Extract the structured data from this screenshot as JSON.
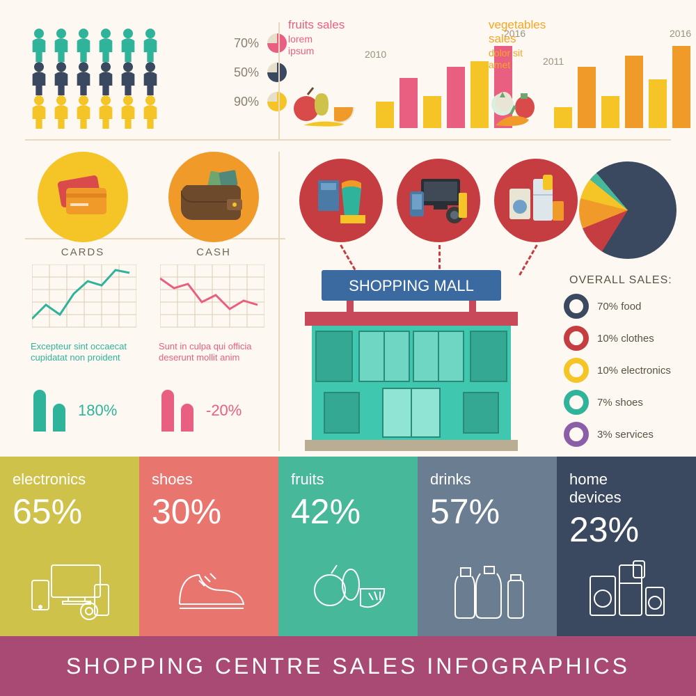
{
  "colors": {
    "bg": "#fdf8f1",
    "teal": "#2fb39b",
    "navy": "#3a4960",
    "yellow": "#f5c528",
    "orange": "#f09a2a",
    "pink": "#e85f82",
    "red": "#c53c41",
    "coral": "#e9766e",
    "green": "#47b99a",
    "blueGray": "#6a7d91",
    "olive": "#cfc24b",
    "violet": "#8a5fa8",
    "footer": "#a84a74",
    "text": "#6e6554",
    "divider": "#e7d9bd"
  },
  "people": {
    "cols": 6,
    "rows": 3,
    "row_colors": [
      "#2fb39b",
      "#3a4960",
      "#f5c528"
    ],
    "legend": [
      {
        "pct": "70%",
        "color": "#e85f82"
      },
      {
        "pct": "50%",
        "color": "#3a4960"
      },
      {
        "pct": "90%",
        "color": "#f5c528"
      }
    ]
  },
  "fruits": {
    "title": "fruits sales",
    "subtitle": "lorem\nipsum",
    "year_start": "2010",
    "year_end": "2016",
    "bars": {
      "values": [
        38,
        72,
        46,
        88,
        96,
        118
      ],
      "colors": [
        "#f5c528",
        "#e85f82",
        "#f5c528",
        "#e85f82",
        "#f5c528",
        "#e85f82"
      ],
      "max": 120
    }
  },
  "vegetables": {
    "title": "vegetables\nsales",
    "subtitle": "dolor sit\namet",
    "year_start": "2011",
    "year_end": "2016",
    "bars": {
      "values": [
        30,
        88,
        46,
        104,
        70,
        118
      ],
      "colors": [
        "#f5c528",
        "#f09a2a",
        "#f5c528",
        "#f09a2a",
        "#f5c528",
        "#f09a2a"
      ],
      "max": 120
    }
  },
  "payment": {
    "cards_label": "CARDS",
    "cash_label": "CASH",
    "cards_circle": "#f5c528",
    "cash_circle": "#f09a2a",
    "mini_grid": "#d9cdb4",
    "cards_line": "#2fb39b",
    "cash_line": "#e85f82",
    "cards_points": [
      [
        0,
        78
      ],
      [
        20,
        58
      ],
      [
        40,
        72
      ],
      [
        60,
        42
      ],
      [
        80,
        24
      ],
      [
        100,
        30
      ],
      [
        120,
        8
      ],
      [
        140,
        12
      ]
    ],
    "cash_points": [
      [
        0,
        20
      ],
      [
        20,
        34
      ],
      [
        40,
        28
      ],
      [
        60,
        54
      ],
      [
        80,
        44
      ],
      [
        100,
        64
      ],
      [
        120,
        52
      ],
      [
        140,
        58
      ]
    ],
    "cards_text": "Excepteur sint occaecat cupidatat non proident",
    "cash_text": "Sunt in culpa qui officia deserunt mollit anim",
    "cards_bars": {
      "heights": [
        60,
        40
      ],
      "color": "#2fb39b",
      "value": "180%"
    },
    "cash_bars": {
      "heights": [
        60,
        40
      ],
      "color": "#e85f82",
      "value": "-20%"
    }
  },
  "mall": {
    "sign": "SHOPPING MALL"
  },
  "pie": {
    "type": "pie",
    "slices": [
      {
        "label": "food",
        "deg": 252,
        "color": "#3a4960"
      },
      {
        "label": "clothes",
        "deg": 36,
        "color": "#c53c41"
      },
      {
        "label": "electronics",
        "deg": 36,
        "color": "#f09a2a"
      },
      {
        "label": "shoes",
        "deg": 25,
        "color": "#f5c528"
      },
      {
        "label": "services",
        "deg": 11,
        "color": "#47b99a"
      }
    ]
  },
  "overall": {
    "title": "OVERALL SALES:",
    "items": [
      {
        "text": "70% food",
        "color": "#3a4960"
      },
      {
        "text": "10% clothes",
        "color": "#c53c41"
      },
      {
        "text": "10% electronics",
        "color": "#f5c528"
      },
      {
        "text": "7% shoes",
        "color": "#2fb39b"
      },
      {
        "text": "3% services",
        "color": "#8a5fa8"
      }
    ]
  },
  "strip": [
    {
      "name": "electronics",
      "pct": "65%",
      "color": "#cfc24b"
    },
    {
      "name": "shoes",
      "pct": "30%",
      "color": "#e9766e"
    },
    {
      "name": "fruits",
      "pct": "42%",
      "color": "#47b99a"
    },
    {
      "name": "drinks",
      "pct": "57%",
      "color": "#6a7d91"
    },
    {
      "name": "home\ndevices",
      "pct": "23%",
      "color": "#3a4960"
    }
  ],
  "footer": {
    "text": "SHOPPING CENTRE SALES INFOGRAPHICS",
    "color": "#a84a74"
  }
}
